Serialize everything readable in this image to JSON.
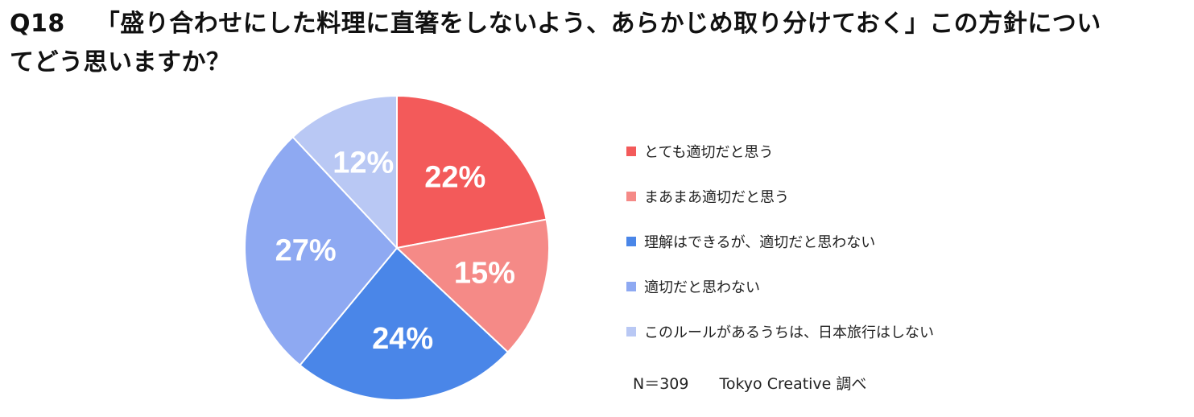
{
  "title": {
    "q_label": "Q18",
    "line1": "「盛り合わせにした料理に直箸をしないよう、あらかじめ取り分けておく」この方針につい",
    "line2": "てどう思いますか？"
  },
  "chart_data": {
    "type": "pie",
    "title": "Q18 「盛り合わせにした料理に直箸をしないよう、あらかじめ取り分けておく」この方針についてどう思いますか？",
    "categories": [
      "とても適切だと思う",
      "まあまあ適切だと思う",
      "理解はできるが、適切だと思わない",
      "適切だと思わない",
      "このルールがあるうちは、日本旅行はしない"
    ],
    "values": [
      22,
      15,
      24,
      27,
      12
    ],
    "labels": [
      "22%",
      "15%",
      "24%",
      "27%",
      "12%"
    ],
    "colors": [
      "#f35a5a",
      "#f58a87",
      "#4a86e8",
      "#8ea9f2",
      "#b9c8f4"
    ],
    "legend_position": "right"
  },
  "note": "N＝309　　Tokyo Creative 調べ"
}
